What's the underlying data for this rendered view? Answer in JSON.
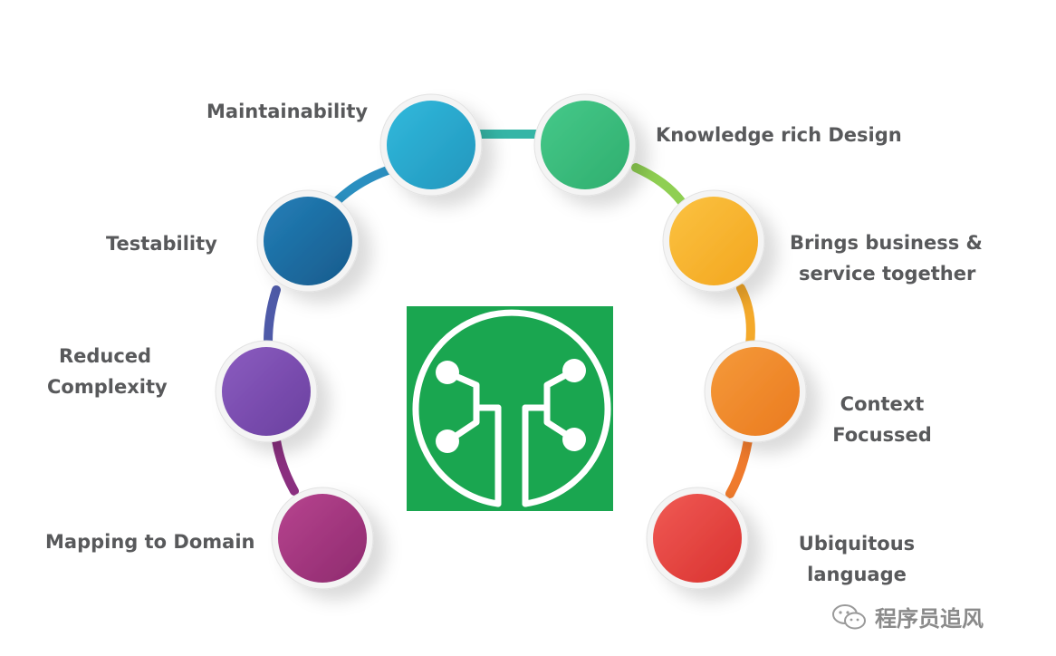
{
  "labels": {
    "maintainability": "Maintainability",
    "knowledge": "Knowledge rich Design",
    "testability": "Testability",
    "brings_line1": "Brings  business &",
    "brings_line2": "service together",
    "reduced_line1": "Reduced",
    "reduced_line2": "Complexity",
    "context_line1": "Context",
    "context_line2": "Focussed",
    "mapping": "Mapping to Domain",
    "ubiquitous_line1": "Ubiquitous",
    "ubiquitous_line2": "language"
  },
  "watermark": "程序员追风",
  "colors": {
    "maintainability": "#2aa9cf",
    "knowledge": "#3dbe7f",
    "testability": "#1d6fa5",
    "brings": "#f7b731",
    "reduced": "#7c4fb0",
    "context": "#f08a2c",
    "mapping": "#a6357f",
    "ubiquitous": "#e8413e",
    "logo": "#1aa650",
    "text": "#58595b"
  }
}
